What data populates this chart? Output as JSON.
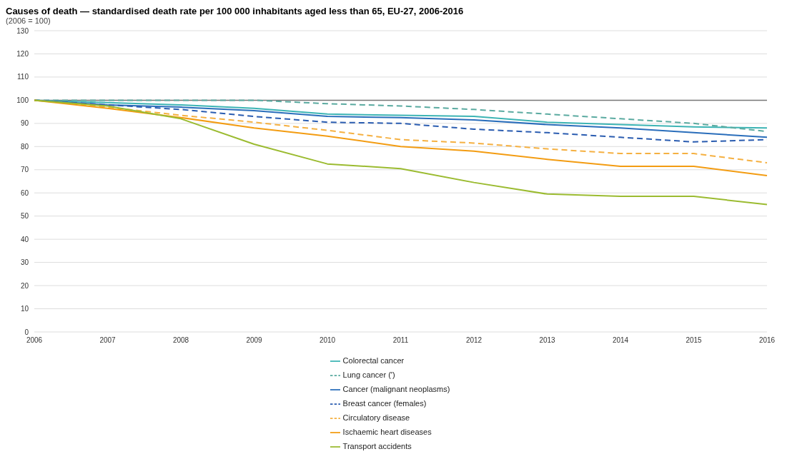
{
  "chart_data": {
    "type": "line",
    "title": "Causes of death — standardised death rate per 100 000 inhabitants aged less than 65, EU-27, 2006-2016",
    "subtitle": "(2006 = 100)",
    "categories": [
      "2006",
      "2007",
      "2008",
      "2009",
      "2010",
      "2011",
      "2012",
      "2013",
      "2014",
      "2015",
      "2016"
    ],
    "series": [
      {
        "name": "Colorectal cancer",
        "color": "#3cb4b4",
        "line_style": "solid",
        "values": [
          100,
          99,
          98,
          96.5,
          94,
          93.5,
          93,
          90.5,
          89.5,
          88.5,
          88
        ]
      },
      {
        "name": "Lung cancer (')",
        "color": "#5aaaa0",
        "line_style": "dashed",
        "values": [
          100,
          100,
          100,
          100,
          98.5,
          97.5,
          96,
          94,
          92,
          90,
          86.5
        ]
      },
      {
        "name": "Cancer (malignant neoplasms)",
        "color": "#2a6ebb",
        "line_style": "solid",
        "values": [
          100,
          98,
          97,
          95.5,
          93,
          92.5,
          91.5,
          89.5,
          88,
          86,
          84
        ]
      },
      {
        "name": "Breast cancer (females)",
        "color": "#2a5cb0",
        "line_style": "dashed",
        "values": [
          100,
          98,
          96,
          93,
          90.5,
          90,
          87.5,
          86,
          84,
          82,
          83
        ]
      },
      {
        "name": "Circulatory disease",
        "color": "#f5b041",
        "line_style": "dashed",
        "values": [
          100,
          97,
          93.5,
          90.5,
          87,
          83,
          81.5,
          79,
          77,
          77,
          73
        ]
      },
      {
        "name": "Ischaemic heart diseases",
        "color": "#f39c12",
        "line_style": "solid",
        "values": [
          100,
          96.5,
          92.5,
          88,
          84.5,
          80,
          78,
          74.5,
          71.5,
          71.5,
          67.5
        ]
      },
      {
        "name": "Transport accidents",
        "color": "#9bbb30",
        "line_style": "solid",
        "values": [
          100,
          97.5,
          92,
          81,
          72.5,
          70.5,
          64.5,
          59.5,
          58.5,
          58.5,
          55
        ]
      }
    ],
    "ylim": [
      0,
      130
    ],
    "yticks": [
      0,
      10,
      20,
      30,
      40,
      50,
      60,
      70,
      80,
      90,
      100,
      110,
      120,
      130
    ],
    "ref_lines": [
      {
        "axis": "y",
        "value": 100,
        "color": "#777777"
      }
    ],
    "grid": "y",
    "legend": "bottom",
    "marker": "none"
  }
}
